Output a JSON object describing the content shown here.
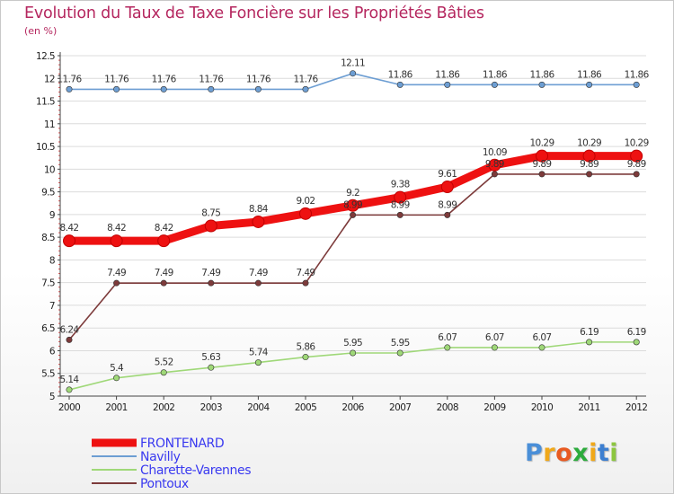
{
  "title": "Evolution du Taux de Taxe Foncière sur les Propriétés Bâties",
  "subtitle": "(en %)",
  "logo": {
    "letters": [
      "P",
      "r",
      "o",
      "x",
      "i",
      "t",
      "i"
    ],
    "colors": [
      "#4a8fd8",
      "#f0a81a",
      "#e85a21",
      "#2cab3c",
      "#f0a81a",
      "#3d7fd0",
      "#8cc63f"
    ]
  },
  "chart_data": {
    "type": "line",
    "title": "Evolution du Taux de Taxe Foncière sur les Propriétés Bâties",
    "ylabel": "(en %)",
    "xlabel": "",
    "x": [
      "2000",
      "2001",
      "2002",
      "2003",
      "2004",
      "2005",
      "2006",
      "2007",
      "2008",
      "2009",
      "2010",
      "2011",
      "2012"
    ],
    "ylim": [
      5,
      12.5
    ],
    "yticks": [
      "5",
      "5.5",
      "6",
      "6.5",
      "7",
      "7.5",
      "8",
      "8.5",
      "9",
      "9.5",
      "10",
      "10.5",
      "11",
      "11.5",
      "12",
      "12.5"
    ],
    "grid": "horizontal",
    "series": [
      {
        "name": "FRONTENARD",
        "color": "#ee1111",
        "bold": true,
        "values": [
          8.42,
          8.42,
          8.42,
          8.75,
          8.84,
          9.02,
          9.2,
          9.38,
          9.61,
          10.09,
          10.29,
          10.29,
          10.29
        ],
        "labels": [
          "8.42",
          "8.42",
          "8.42",
          "8.75",
          "8.84",
          "9.02",
          "9.2",
          "9.38",
          "9.61",
          "10.09",
          "10.29",
          "10.29",
          "10.29"
        ]
      },
      {
        "name": "Navilly",
        "color": "#6d9ed3",
        "bold": false,
        "values": [
          11.76,
          11.76,
          11.76,
          11.76,
          11.76,
          11.76,
          12.11,
          11.86,
          11.86,
          11.86,
          11.86,
          11.86,
          11.86
        ],
        "labels": [
          "11.76",
          "11.76",
          "11.76",
          "11.76",
          "11.76",
          "11.76",
          "12.11",
          "11.86",
          "11.86",
          "11.86",
          "11.86",
          "11.86",
          "11.86"
        ]
      },
      {
        "name": "Charette-Varennes",
        "color": "#9fd878",
        "bold": false,
        "values": [
          5.14,
          5.4,
          5.52,
          5.63,
          5.74,
          5.86,
          5.95,
          5.95,
          6.07,
          6.07,
          6.07,
          6.19,
          6.19
        ],
        "labels": [
          "5.14",
          "5.4",
          "5.52",
          "5.63",
          "5.74",
          "5.86",
          "5.95",
          "5.95",
          "6.07",
          "6.07",
          "6.07",
          "6.19",
          "6.19"
        ]
      },
      {
        "name": "Pontoux",
        "color": "#7d3b3b",
        "bold": false,
        "values": [
          6.24,
          7.49,
          7.49,
          7.49,
          7.49,
          7.49,
          8.99,
          8.99,
          8.99,
          9.89,
          9.89,
          9.89,
          9.89
        ],
        "labels": [
          "6.24",
          "7.49",
          "7.49",
          "7.49",
          "7.49",
          "7.49",
          "8.99",
          "8.99",
          "8.99",
          "9.89",
          "9.89",
          "9.89",
          "9.89"
        ]
      }
    ]
  }
}
